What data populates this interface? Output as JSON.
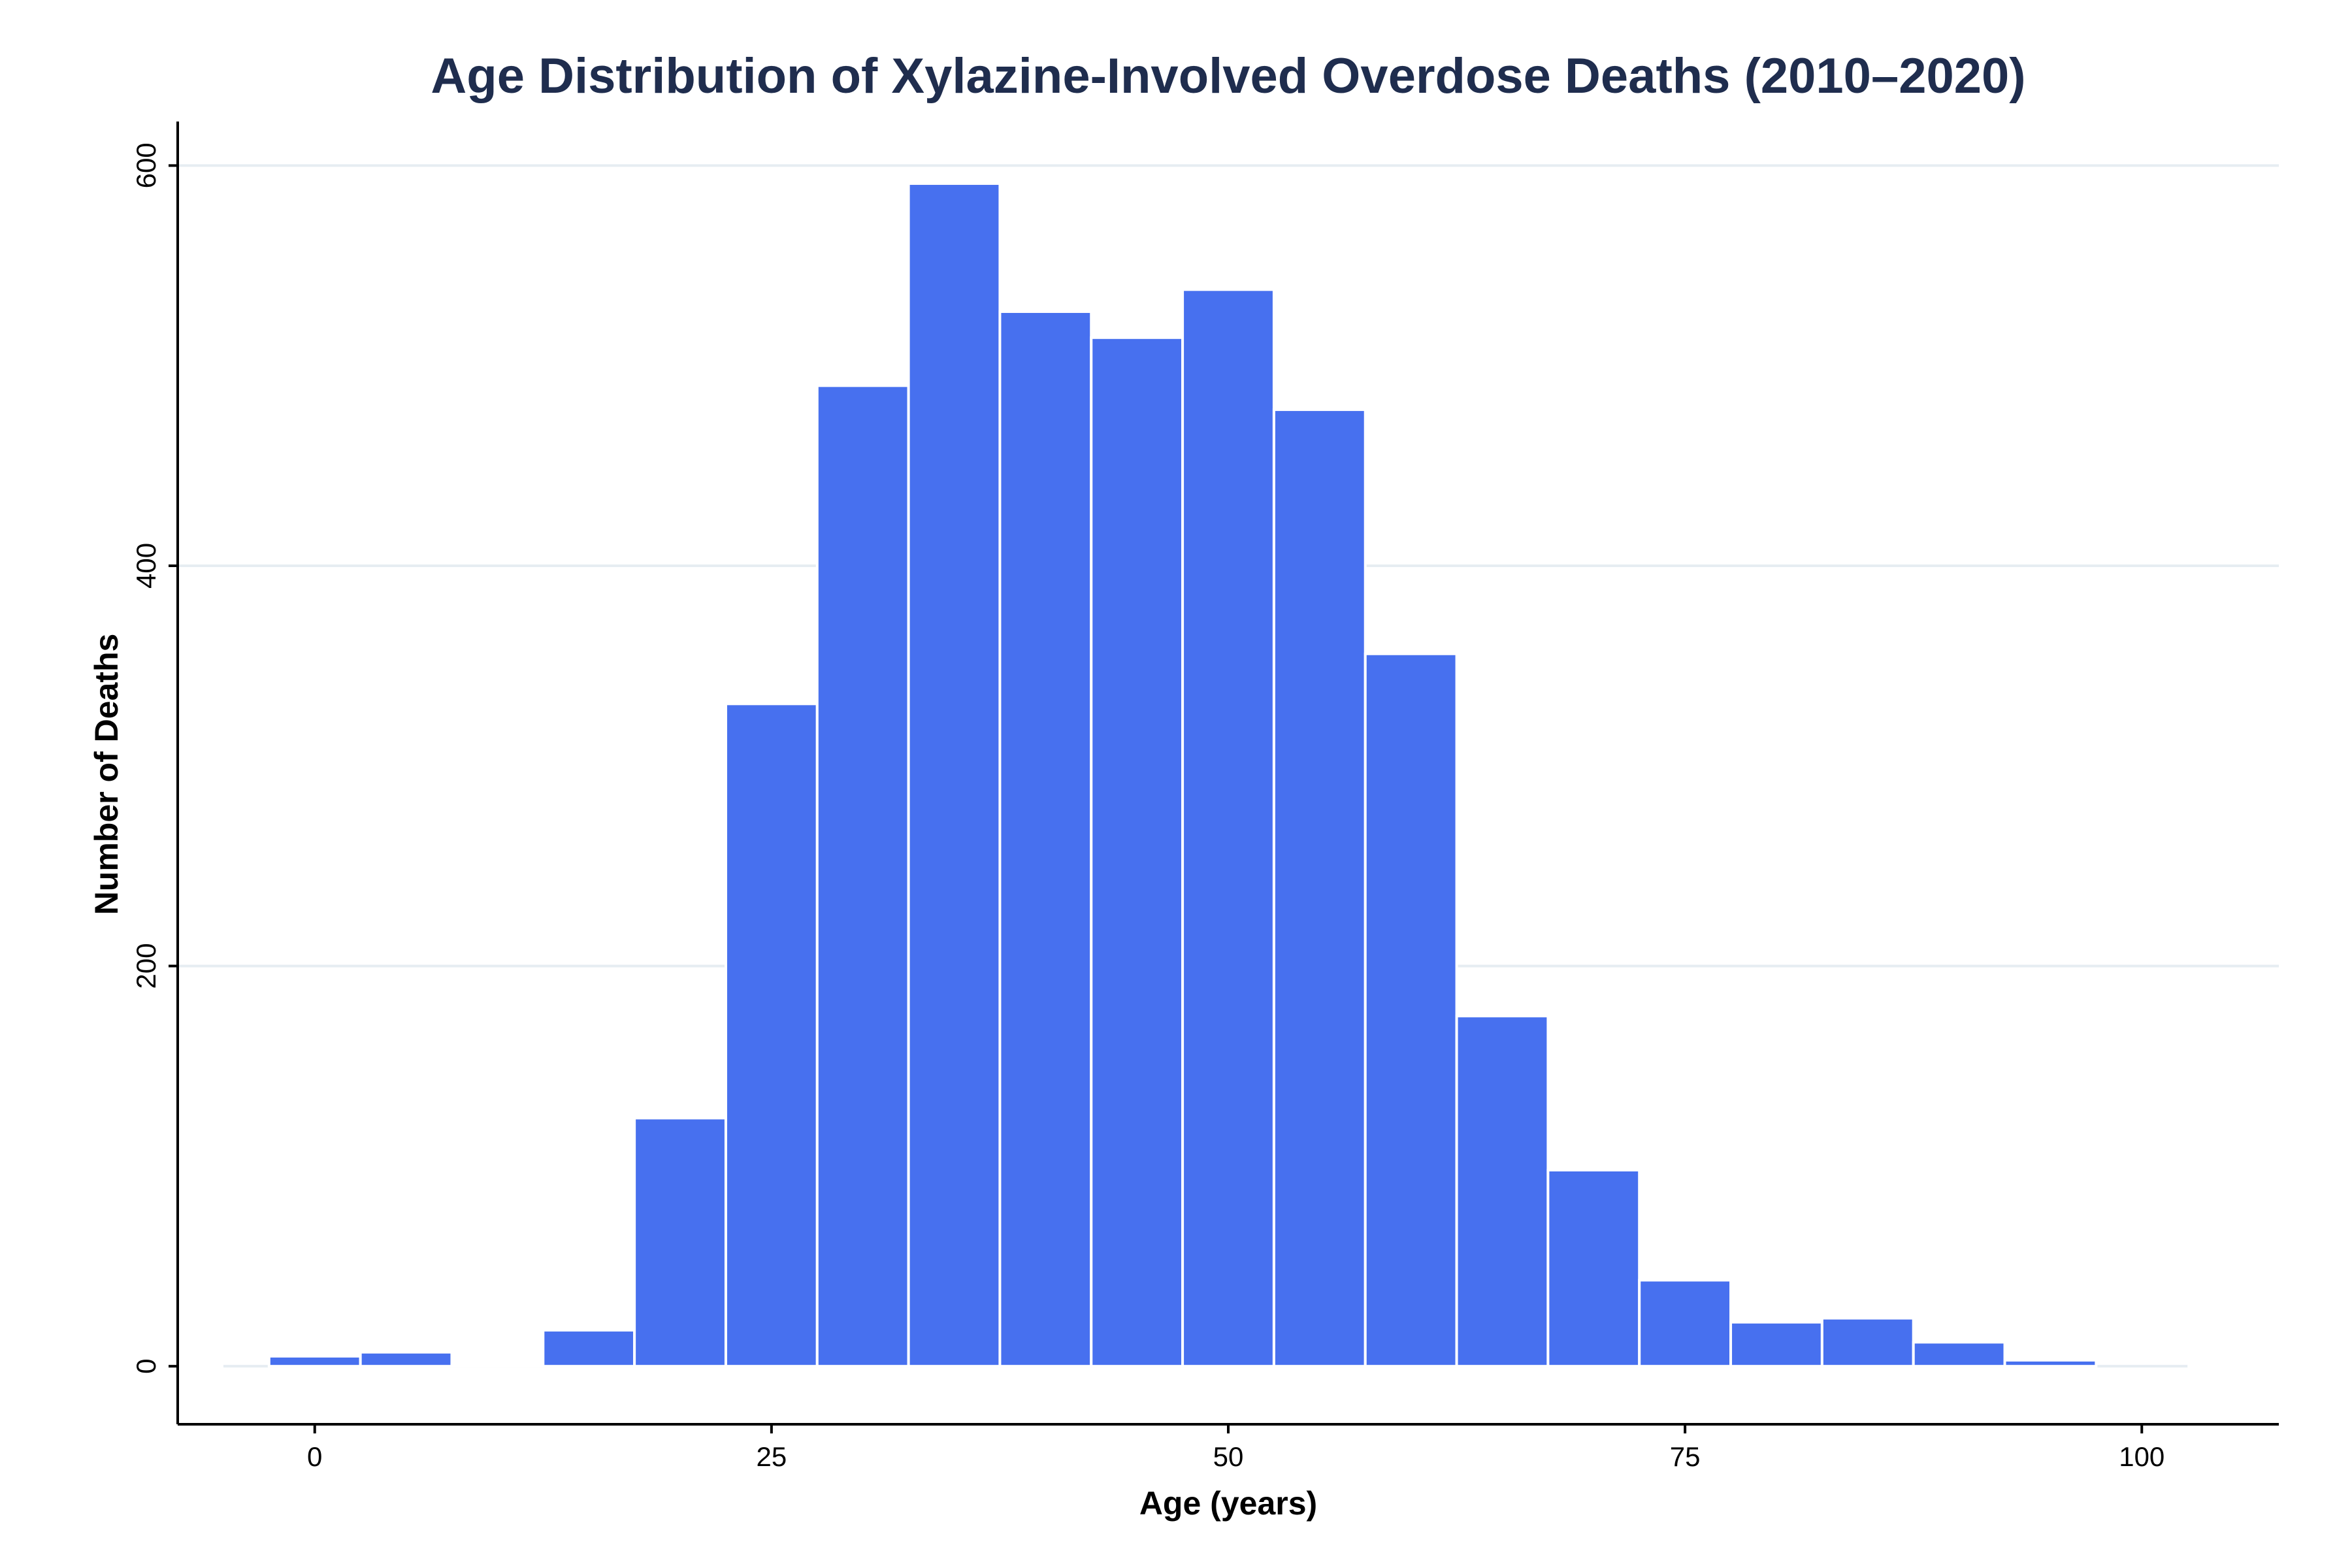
{
  "colors": {
    "bar": "#4770ef",
    "bar_edge": "#ffffff",
    "title": "#1f2d4e",
    "grid": "#e6edf2",
    "axis": "#000000"
  },
  "chart_data": {
    "type": "bar",
    "title": "Age Distribution of Xylazine-Involved Overdose Deaths (2010–2020)",
    "xlabel": "Age (years)",
    "ylabel": "Number of Deaths",
    "xlim": [
      -7.5,
      107.5
    ],
    "ylim": [
      -29,
      622
    ],
    "grid": "horizontal",
    "bin_width": 5,
    "x_ticks": [
      0,
      25,
      50,
      75,
      100
    ],
    "x_tick_labels": [
      "0",
      "25",
      "50",
      "75",
      "100"
    ],
    "y_ticks": [
      0,
      200,
      400,
      600
    ],
    "y_tick_labels": [
      "0",
      "200",
      "400",
      "600"
    ],
    "bins": [
      {
        "start": -2.5,
        "end": 2.5,
        "value": 5
      },
      {
        "start": 2.5,
        "end": 7.5,
        "value": 7
      },
      {
        "start": 7.5,
        "end": 12.5,
        "value": 1
      },
      {
        "start": 12.5,
        "end": 17.5,
        "value": 18
      },
      {
        "start": 17.5,
        "end": 22.5,
        "value": 124
      },
      {
        "start": 22.5,
        "end": 27.5,
        "value": 331
      },
      {
        "start": 27.5,
        "end": 32.5,
        "value": 490
      },
      {
        "start": 32.5,
        "end": 37.5,
        "value": 591
      },
      {
        "start": 37.5,
        "end": 42.5,
        "value": 527
      },
      {
        "start": 42.5,
        "end": 47.5,
        "value": 514
      },
      {
        "start": 47.5,
        "end": 52.5,
        "value": 538
      },
      {
        "start": 52.5,
        "end": 57.5,
        "value": 478
      },
      {
        "start": 57.5,
        "end": 62.5,
        "value": 356
      },
      {
        "start": 62.5,
        "end": 67.5,
        "value": 175
      },
      {
        "start": 67.5,
        "end": 72.5,
        "value": 98
      },
      {
        "start": 72.5,
        "end": 77.5,
        "value": 43
      },
      {
        "start": 77.5,
        "end": 82.5,
        "value": 22
      },
      {
        "start": 82.5,
        "end": 87.5,
        "value": 24
      },
      {
        "start": 87.5,
        "end": 92.5,
        "value": 12
      },
      {
        "start": 92.5,
        "end": 97.5,
        "value": 3
      },
      {
        "start": 97.5,
        "end": 102.5,
        "value": 0
      }
    ]
  }
}
